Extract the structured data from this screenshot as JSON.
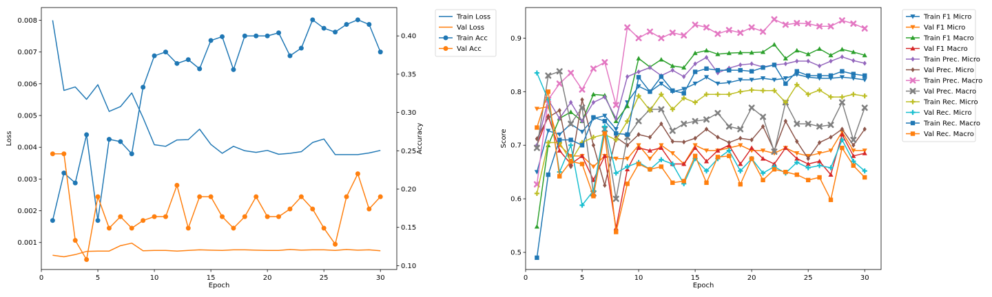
{
  "colors": {
    "blue": "#1f77b4",
    "orange": "#ff7f0e",
    "green": "#2ca02c",
    "red": "#d62728",
    "purple": "#9467bd",
    "brown": "#8c564b",
    "pink": "#e377c2",
    "gray": "#7f7f7f",
    "olive": "#bcbd22",
    "cyan": "#17becf"
  },
  "chart_data": [
    {
      "type": "line",
      "xlabel": "Epoch",
      "ylabel": "Loss",
      "y2label": "Accuracy",
      "x": [
        1,
        2,
        3,
        4,
        5,
        6,
        7,
        8,
        9,
        10,
        11,
        12,
        13,
        14,
        15,
        16,
        17,
        18,
        19,
        20,
        21,
        22,
        23,
        24,
        25,
        26,
        27,
        28,
        29,
        30
      ],
      "xlim": [
        0.0,
        31.45
      ],
      "ylim": [
        0.00015,
        0.0084
      ],
      "y2lim": [
        0.095,
        0.437
      ],
      "xticks": [
        0,
        5,
        10,
        15,
        20,
        25,
        30
      ],
      "yticks": [
        0.001,
        0.002,
        0.003,
        0.004,
        0.005,
        0.006,
        0.007,
        0.008
      ],
      "ytick_labels": [
        "0.001",
        "0.002",
        "0.003",
        "0.004",
        "0.005",
        "0.006",
        "0.007",
        "0.008"
      ],
      "y2ticks": [
        0.1,
        0.15,
        0.2,
        0.25,
        0.3,
        0.35,
        0.4
      ],
      "y2tick_labels": [
        "0.10",
        "0.15",
        "0.20",
        "0.25",
        "0.30",
        "0.35",
        "0.40"
      ],
      "legend_position": "outside-top-right",
      "series": [
        {
          "name": "Train Loss",
          "axis": "left",
          "marker": "none",
          "color": "#1f77b4",
          "values": [
            0.008,
            0.00579,
            0.0059,
            0.00551,
            0.00597,
            0.00513,
            0.00528,
            0.00571,
            0.00493,
            0.00408,
            0.00403,
            0.00423,
            0.00424,
            0.00457,
            0.00409,
            0.00381,
            0.00403,
            0.00389,
            0.00384,
            0.0039,
            0.00378,
            0.00381,
            0.00386,
            0.00415,
            0.00426,
            0.00377,
            0.00377,
            0.00377,
            0.00382,
            0.0039
          ]
        },
        {
          "name": "Val Loss",
          "axis": "left",
          "marker": "none",
          "color": "#ff7f0e",
          "values": [
            0.0006,
            0.00055,
            0.00062,
            0.00072,
            0.00073,
            0.00073,
            0.0009,
            0.00098,
            0.00074,
            0.00075,
            0.00075,
            0.00073,
            0.00075,
            0.00077,
            0.00076,
            0.00075,
            0.00077,
            0.00077,
            0.00076,
            0.00075,
            0.00075,
            0.00078,
            0.00076,
            0.00077,
            0.00077,
            0.00075,
            0.00078,
            0.00076,
            0.00077,
            0.00074
          ]
        },
        {
          "name": "Train Acc",
          "axis": "right",
          "marker": "circle",
          "color": "#1f77b4",
          "values": [
            0.159,
            0.221,
            0.208,
            0.271,
            0.159,
            0.265,
            0.262,
            0.246,
            0.333,
            0.374,
            0.379,
            0.364,
            0.369,
            0.357,
            0.394,
            0.399,
            0.356,
            0.4,
            0.4,
            0.4,
            0.404,
            0.374,
            0.384,
            0.421,
            0.41,
            0.405,
            0.415,
            0.421,
            0.415,
            0.379
          ]
        },
        {
          "name": "Val Acc",
          "axis": "right",
          "marker": "circle",
          "color": "#ff7f0e",
          "values": [
            0.246,
            0.246,
            0.133,
            0.108,
            0.19,
            0.149,
            0.164,
            0.149,
            0.159,
            0.164,
            0.164,
            0.205,
            0.149,
            0.19,
            0.19,
            0.164,
            0.149,
            0.164,
            0.19,
            0.164,
            0.164,
            0.174,
            0.19,
            0.174,
            0.149,
            0.128,
            0.19,
            0.22,
            0.174,
            0.19
          ]
        }
      ]
    },
    {
      "type": "line",
      "xlabel": "Epoch",
      "ylabel": "Score",
      "x": [
        1,
        2,
        3,
        4,
        5,
        6,
        7,
        8,
        9,
        10,
        11,
        12,
        13,
        14,
        15,
        16,
        17,
        18,
        19,
        20,
        21,
        22,
        23,
        24,
        25,
        26,
        27,
        28,
        29,
        30
      ],
      "xlim": [
        0.0,
        31.45
      ],
      "ylim": [
        0.468,
        0.957
      ],
      "xticks": [
        0,
        5,
        10,
        15,
        20,
        25,
        30
      ],
      "yticks": [
        0.5,
        0.6,
        0.7,
        0.8,
        0.9
      ],
      "ytick_labels": [
        "0.5",
        "0.6",
        "0.7",
        "0.8",
        "0.9"
      ],
      "legend_position": "outside-top-right",
      "series": [
        {
          "name": "Train F1 Micro",
          "marker": "triangle-down",
          "color": "#1f77b4",
          "values": [
            0.65,
            0.727,
            0.72,
            0.74,
            0.725,
            0.75,
            0.755,
            0.73,
            0.78,
            0.81,
            0.8,
            0.815,
            0.8,
            0.805,
            0.815,
            0.827,
            0.815,
            0.817,
            0.822,
            0.822,
            0.825,
            0.822,
            0.825,
            0.832,
            0.827,
            0.825,
            0.825,
            0.827,
            0.825,
            0.822
          ]
        },
        {
          "name": "Val F1 Micro",
          "marker": "triangle-down",
          "color": "#ff7f0e",
          "values": [
            0.768,
            0.772,
            0.7,
            0.68,
            0.68,
            0.66,
            0.68,
            0.675,
            0.675,
            0.7,
            0.675,
            0.7,
            0.685,
            0.665,
            0.7,
            0.69,
            0.69,
            0.695,
            0.7,
            0.69,
            0.69,
            0.685,
            0.695,
            0.685,
            0.68,
            0.685,
            0.69,
            0.725,
            0.69,
            0.69
          ]
        },
        {
          "name": "Train F1 Macro",
          "marker": "triangle-up",
          "color": "#2ca02c",
          "values": [
            0.548,
            0.7,
            0.75,
            0.762,
            0.745,
            0.795,
            0.793,
            0.745,
            0.773,
            0.862,
            0.846,
            0.86,
            0.848,
            0.845,
            0.872,
            0.877,
            0.87,
            0.872,
            0.873,
            0.873,
            0.874,
            0.888,
            0.862,
            0.877,
            0.87,
            0.88,
            0.868,
            0.879,
            0.874,
            0.868
          ]
        },
        {
          "name": "Val F1 Macro",
          "marker": "triangle-up",
          "color": "#d62728",
          "values": [
            0.7,
            0.755,
            0.69,
            0.665,
            0.68,
            0.635,
            0.68,
            0.545,
            0.655,
            0.695,
            0.69,
            0.695,
            0.665,
            0.665,
            0.695,
            0.67,
            0.69,
            0.7,
            0.665,
            0.695,
            0.675,
            0.665,
            0.695,
            0.675,
            0.665,
            0.67,
            0.645,
            0.72,
            0.68,
            0.685
          ]
        },
        {
          "name": "Train Prec. Micro",
          "marker": "diamond",
          "color": "#9467bd",
          "values": [
            0.7,
            0.785,
            0.75,
            0.78,
            0.745,
            0.78,
            0.79,
            0.75,
            0.828,
            0.837,
            0.845,
            0.83,
            0.84,
            0.828,
            0.852,
            0.864,
            0.835,
            0.844,
            0.85,
            0.852,
            0.846,
            0.85,
            0.852,
            0.857,
            0.857,
            0.848,
            0.857,
            0.865,
            0.858,
            0.853
          ]
        },
        {
          "name": "Val Prec. Micro",
          "marker": "diamond",
          "color": "#8c564b",
          "values": [
            0.712,
            0.752,
            0.765,
            0.66,
            0.785,
            0.7,
            0.625,
            0.715,
            0.7,
            0.72,
            0.715,
            0.74,
            0.707,
            0.706,
            0.713,
            0.73,
            0.715,
            0.705,
            0.713,
            0.71,
            0.735,
            0.69,
            0.745,
            0.707,
            0.675,
            0.705,
            0.715,
            0.73,
            0.7,
            0.73
          ]
        },
        {
          "name": "Train Prec. Macro",
          "marker": "x",
          "color": "#e377c2",
          "values": [
            0.627,
            0.785,
            0.815,
            0.835,
            0.804,
            0.843,
            0.855,
            0.775,
            0.92,
            0.9,
            0.912,
            0.9,
            0.91,
            0.905,
            0.925,
            0.92,
            0.908,
            0.915,
            0.91,
            0.92,
            0.912,
            0.935,
            0.925,
            0.928,
            0.927,
            0.922,
            0.922,
            0.933,
            0.927,
            0.918
          ]
        },
        {
          "name": "Val Prec. Macro",
          "marker": "x",
          "color": "#7f7f7f",
          "values": [
            0.695,
            0.83,
            0.838,
            0.74,
            0.77,
            0.61,
            0.73,
            0.6,
            0.715,
            0.745,
            0.767,
            0.767,
            0.727,
            0.74,
            0.745,
            0.748,
            0.76,
            0.735,
            0.73,
            0.77,
            0.753,
            0.688,
            0.78,
            0.74,
            0.74,
            0.735,
            0.738,
            0.78,
            0.71,
            0.77
          ]
        },
        {
          "name": "Train Rec. Micro",
          "marker": "plus",
          "color": "#bcbd22",
          "values": [
            0.61,
            0.705,
            0.705,
            0.67,
            0.705,
            0.715,
            0.72,
            0.71,
            0.745,
            0.792,
            0.765,
            0.795,
            0.767,
            0.788,
            0.78,
            0.795,
            0.795,
            0.795,
            0.8,
            0.803,
            0.802,
            0.802,
            0.78,
            0.813,
            0.795,
            0.803,
            0.79,
            0.79,
            0.795,
            0.792
          ]
        },
        {
          "name": "Val Rec. Micro",
          "marker": "plus",
          "color": "#17becf",
          "values": [
            0.835,
            0.785,
            0.65,
            0.7,
            0.588,
            0.615,
            0.735,
            0.648,
            0.66,
            0.668,
            0.655,
            0.673,
            0.665,
            0.628,
            0.675,
            0.652,
            0.675,
            0.69,
            0.652,
            0.675,
            0.648,
            0.66,
            0.648,
            0.668,
            0.658,
            0.662,
            0.658,
            0.71,
            0.67,
            0.652
          ]
        },
        {
          "name": "Train Rec. Macro",
          "marker": "square",
          "color": "#1f77b4",
          "values": [
            0.49,
            0.645,
            0.71,
            0.71,
            0.7,
            0.752,
            0.745,
            0.722,
            0.72,
            0.827,
            0.8,
            0.828,
            0.802,
            0.797,
            0.837,
            0.843,
            0.84,
            0.84,
            0.84,
            0.838,
            0.845,
            0.85,
            0.815,
            0.838,
            0.83,
            0.83,
            0.83,
            0.838,
            0.833,
            0.83
          ]
        },
        {
          "name": "Val Rec. Macro",
          "marker": "square",
          "color": "#ff7f0e",
          "values": [
            0.733,
            0.8,
            0.642,
            0.67,
            0.665,
            0.605,
            0.722,
            0.538,
            0.628,
            0.665,
            0.655,
            0.66,
            0.63,
            0.633,
            0.68,
            0.63,
            0.678,
            0.68,
            0.627,
            0.675,
            0.635,
            0.655,
            0.65,
            0.645,
            0.635,
            0.64,
            0.598,
            0.695,
            0.662,
            0.64
          ]
        }
      ]
    }
  ]
}
